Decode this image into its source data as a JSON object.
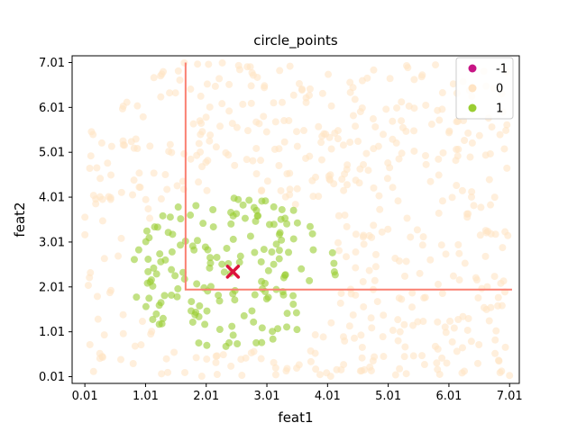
{
  "chart_data": {
    "type": "scatter",
    "title": "circle_points",
    "xlabel": "feat1",
    "ylabel": "feat2",
    "xlim": [
      -0.2,
      7.17
    ],
    "ylim": [
      -0.14,
      7.16
    ],
    "xticks": [
      "0.01",
      "1.01",
      "2.01",
      "3.01",
      "4.01",
      "5.01",
      "6.01",
      "7.01"
    ],
    "yticks": [
      "0.01",
      "1.01",
      "2.01",
      "3.01",
      "4.01",
      "5.01",
      "6.01",
      "7.01"
    ],
    "grid": false,
    "legend_position": "top-right",
    "series": [
      {
        "name": "-1",
        "color": "#c71585",
        "points": []
      },
      {
        "name": "0",
        "color": "#ffe4c4",
        "count": 520,
        "note_region": "uniform over [0.01,7.01]x[0.01,7.01] outside circle centered (2.45,2.35) radius ~1.7"
      },
      {
        "name": "1",
        "color": "#9acd32",
        "count": 170,
        "center": [
          2.45,
          2.35
        ],
        "radius": 1.7
      }
    ],
    "marker": {
      "label": "center",
      "symbol": "x",
      "color": "#dc143c",
      "x": 2.45,
      "y": 2.35
    },
    "lines": [
      {
        "color": "#fa8072",
        "points": [
          [
            1.67,
            7.01
          ],
          [
            1.67,
            1.95
          ],
          [
            7.05,
            1.95
          ]
        ]
      }
    ]
  }
}
